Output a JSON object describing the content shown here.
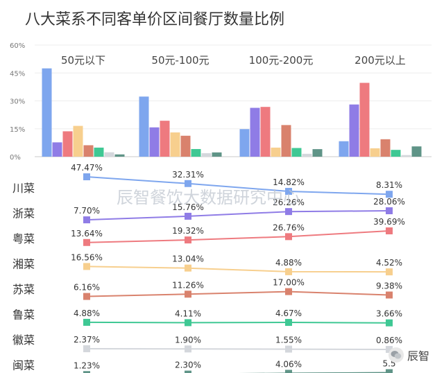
{
  "title": "八大菜系不同客单价区间餐厅数量比例",
  "watermark": "辰智餐饮大数据研究中心",
  "brand": {
    "text": "辰智",
    "icon": "wechat-icon"
  },
  "chart_data": {
    "type": "bar",
    "title": "八大菜系不同客单价区间餐厅数量比例",
    "categories": [
      "50元以下",
      "50元-100元",
      "100元-200元",
      "200元以上"
    ],
    "ylim": [
      0,
      60
    ],
    "yticks": [
      "0%",
      "15%",
      "30%",
      "45%",
      "60%"
    ],
    "grid": true,
    "series": [
      {
        "name": "川菜",
        "color": "#7ea6ee",
        "values": [
          47.47,
          32.31,
          14.82,
          8.31
        ],
        "labels": [
          "47.47%",
          "32.31%",
          "14.82%",
          "8.31%"
        ]
      },
      {
        "name": "浙菜",
        "color": "#8f7ce6",
        "values": [
          7.7,
          15.76,
          26.26,
          28.06
        ],
        "labels": [
          "7.70%",
          "15.76%",
          "26.26%",
          "28.06%"
        ]
      },
      {
        "name": "粤菜",
        "color": "#ee7a7f",
        "values": [
          13.64,
          19.32,
          26.76,
          39.69
        ],
        "labels": [
          "13.64%",
          "19.32%",
          "26.76%",
          "39.69%"
        ]
      },
      {
        "name": "湘菜",
        "color": "#f7cf8e",
        "values": [
          16.56,
          13.04,
          4.88,
          4.52
        ],
        "labels": [
          "16.56%",
          "13.04%",
          "4.88%",
          "4.52%"
        ]
      },
      {
        "name": "苏菜",
        "color": "#d9826d",
        "values": [
          6.16,
          11.26,
          17.0,
          9.38
        ],
        "labels": [
          "6.16%",
          "11.26%",
          "17.00%",
          "9.38%"
        ]
      },
      {
        "name": "鲁菜",
        "color": "#3fc894",
        "values": [
          4.88,
          4.11,
          4.67,
          3.66
        ],
        "labels": [
          "4.88%",
          "4.11%",
          "4.67%",
          "3.66%"
        ]
      },
      {
        "name": "徽菜",
        "color": "#d4d7dc",
        "values": [
          2.37,
          1.9,
          1.55,
          0.86
        ],
        "labels": [
          "2.37%",
          "1.90%",
          "1.55%",
          "0.86%"
        ]
      },
      {
        "name": "闽菜",
        "color": "#5f9487",
        "values": [
          1.23,
          2.3,
          4.06,
          5.53
        ],
        "labels": [
          "1.23%",
          "2.30%",
          "4.06%",
          "5.5"
        ]
      }
    ]
  }
}
